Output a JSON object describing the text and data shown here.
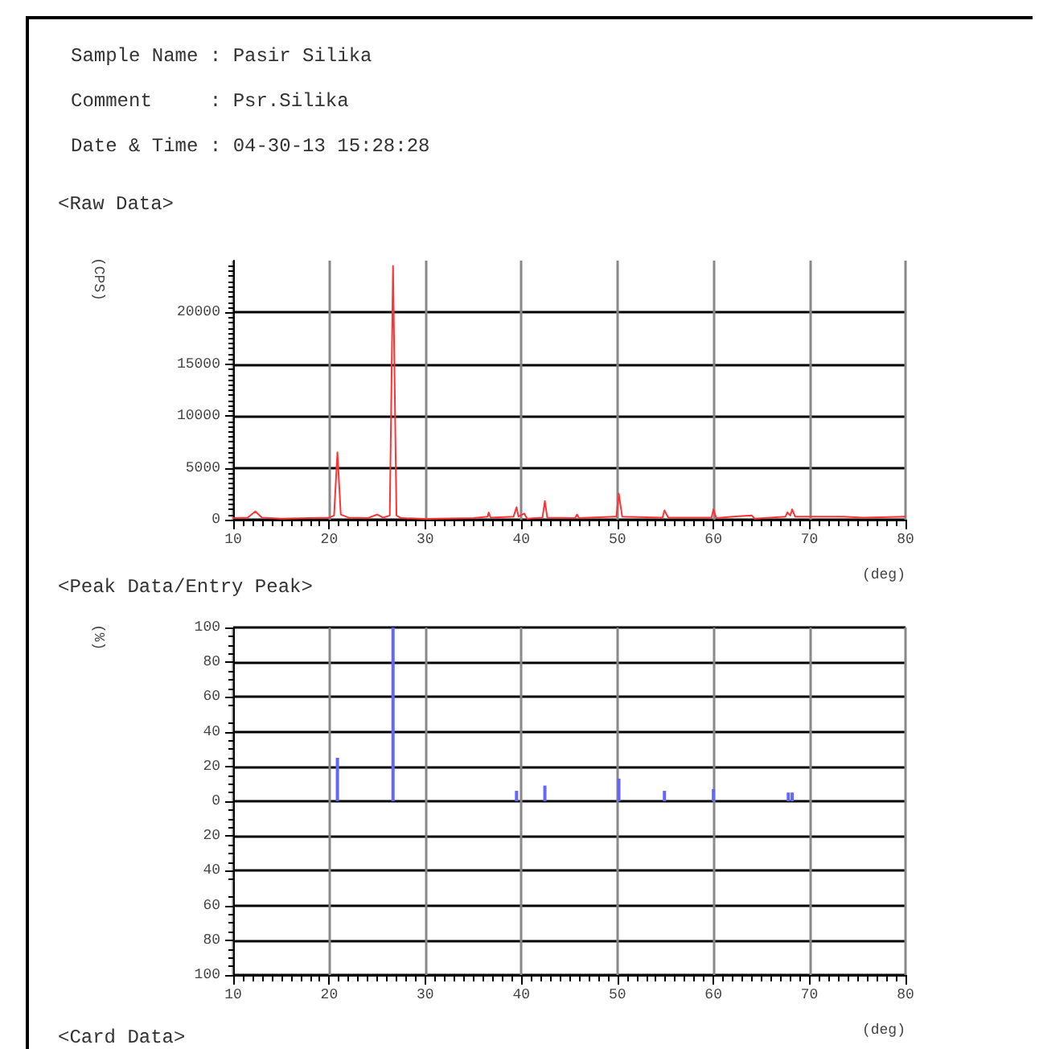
{
  "chart_data": [
    {
      "type": "line",
      "title": "<Raw Data>",
      "annotations": [
        "Sample Name : Pasir Silika",
        "Comment     : Psr.Silika",
        "Date & Time : 04-30-13 15:28:28"
      ],
      "xlabel": "(deg)",
      "ylabel": "(CPS)",
      "grid": true,
      "marker": "none",
      "x": [
        10,
        11.5,
        12.3,
        13,
        15,
        20,
        20.5,
        20.85,
        21.2,
        22,
        24,
        25,
        25.6,
        26.3,
        26.64,
        27,
        27.5,
        30,
        35,
        36.5,
        36.6,
        36.8,
        39.2,
        39.5,
        39.7,
        40.3,
        40.6,
        42.2,
        42.45,
        42.7,
        45.6,
        45.8,
        46,
        49.9,
        50.15,
        50.5,
        54.7,
        54.9,
        55.3,
        59.8,
        60,
        60.3,
        62,
        64,
        64.3,
        67.5,
        67.7,
        68,
        68.2,
        68.5,
        73.5,
        75.6,
        80
      ],
      "series": [
        {
          "color": "#ff3333",
          "values": [
            150,
            200,
            800,
            200,
            100,
            200,
            400,
            6500,
            500,
            200,
            150,
            500,
            200,
            400,
            24500,
            400,
            150,
            80,
            150,
            300,
            700,
            200,
            300,
            1200,
            300,
            600,
            100,
            200,
            1800,
            200,
            150,
            500,
            150,
            300,
            2500,
            300,
            200,
            900,
            200,
            200,
            1000,
            150,
            300,
            400,
            100,
            300,
            700,
            400,
            1000,
            300,
            300,
            200,
            300
          ]
        }
      ],
      "xlim": [
        10,
        80
      ],
      "xticks": [
        10,
        20,
        30,
        40,
        50,
        60,
        70,
        80
      ],
      "ylim": [
        0,
        25000
      ],
      "yticks": [
        0,
        5000,
        10000,
        15000,
        20000
      ]
    },
    {
      "type": "bar",
      "title": "<Peak Data/Entry Peak>",
      "annotations": [
        "<Card Data>"
      ],
      "xlabel": "(deg)",
      "ylabel": "(%)",
      "grid": true,
      "x": [
        20.85,
        26.64,
        39.5,
        42.45,
        50.15,
        54.9,
        60,
        67.8,
        68.2
      ],
      "series": [
        {
          "color": "#6666ff",
          "values": [
            25,
            100,
            6,
            9,
            13,
            6,
            7,
            5,
            5
          ]
        }
      ],
      "xlim": [
        10,
        80
      ],
      "xticks": [
        10,
        20,
        30,
        40,
        50,
        60,
        70,
        80
      ],
      "ylim": [
        -100,
        100
      ],
      "yticks": [
        {
          "value": -100,
          "label": "100"
        },
        {
          "value": -80,
          "label": "80"
        },
        {
          "value": -60,
          "label": "60"
        },
        {
          "value": -40,
          "label": "40"
        },
        {
          "value": -20,
          "label": "20"
        },
        0,
        20,
        40,
        60,
        80,
        100
      ]
    }
  ]
}
